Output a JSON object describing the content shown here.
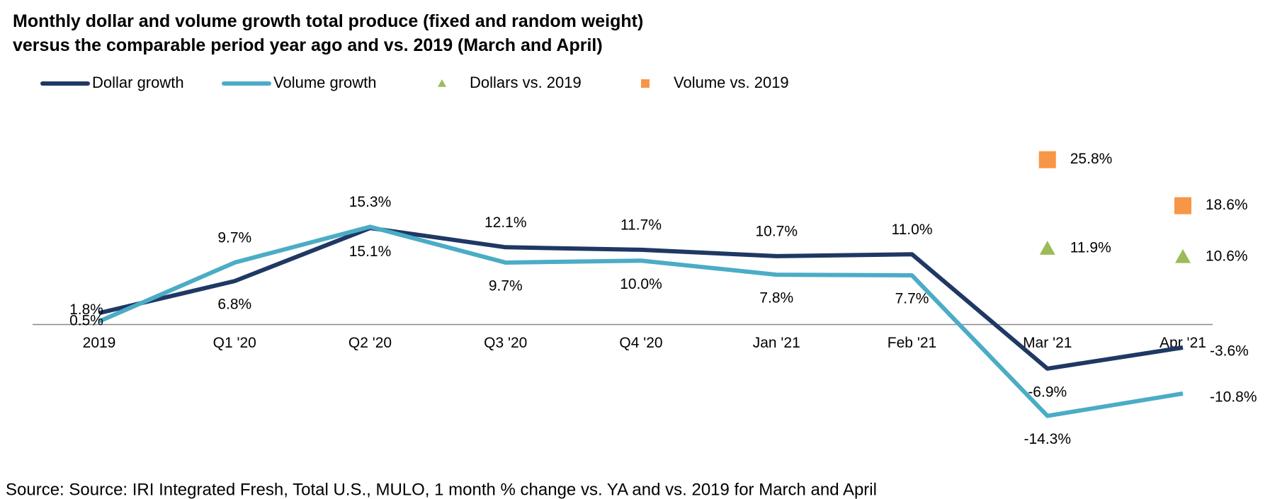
{
  "chart_data": {
    "type": "line",
    "title": [
      "Monthly dollar and volume growth  total produce (fixed and random weight)",
      "versus the comparable period year ago and vs. 2019 (March and April)"
    ],
    "source": "Source: Source: IRI Integrated Fresh, Total U.S., MULO, 1 month % change vs. YA and vs. 2019 for March and April",
    "categories": [
      "2019",
      "Q1 '20",
      "Q2 '20",
      "Q3 '20",
      "Q4 '20",
      "Jan '21",
      "Feb '21",
      "Mar '21",
      "Apr '21"
    ],
    "ylim": [
      -18,
      30
    ],
    "series": [
      {
        "name": "Dollar growth",
        "color": "#1f3864",
        "marker": "line",
        "values": [
          1.8,
          6.8,
          15.1,
          12.1,
          11.7,
          10.7,
          11.0,
          -6.9,
          -3.6
        ],
        "value_labels": [
          "1.8%",
          "6.8%",
          "15.1%",
          "12.1%",
          "11.7%",
          "10.7%",
          "11.0%",
          "-6.9%",
          "-3.6%"
        ]
      },
      {
        "name": "Volume growth",
        "color": "#4bacc6",
        "marker": "line",
        "values": [
          0.5,
          9.7,
          15.3,
          9.7,
          10.0,
          7.8,
          7.7,
          -14.3,
          -10.8
        ],
        "value_labels": [
          "0.5%",
          "9.7%",
          "15.3%",
          "9.7%",
          "10.0%",
          "7.8%",
          "7.7%",
          "-14.3%",
          "-10.8%"
        ]
      },
      {
        "name": "Dollars vs. 2019",
        "color": "#9bbb59",
        "marker": "triangle",
        "values": [
          null,
          null,
          null,
          null,
          null,
          null,
          null,
          11.9,
          10.6
        ],
        "value_labels": [
          null,
          null,
          null,
          null,
          null,
          null,
          null,
          "11.9%",
          "10.6%"
        ]
      },
      {
        "name": "Volume vs. 2019",
        "color": "#f79646",
        "marker": "square",
        "values": [
          null,
          null,
          null,
          null,
          null,
          null,
          null,
          25.8,
          18.6
        ],
        "value_labels": [
          null,
          null,
          null,
          null,
          null,
          null,
          null,
          "25.8%",
          "18.6%"
        ]
      }
    ]
  }
}
